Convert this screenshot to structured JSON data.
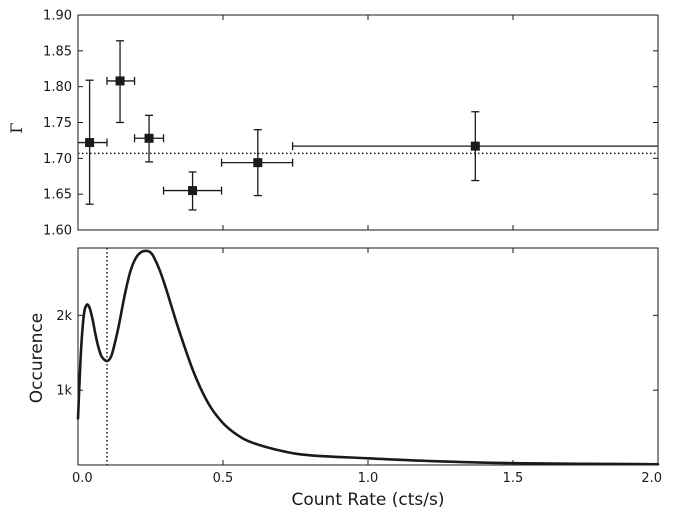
{
  "chart_data": [
    {
      "type": "scatter",
      "title": "",
      "xlabel": "",
      "ylabel": "Γ",
      "xlim": [
        0.0,
        2.0
      ],
      "ylim": [
        1.6,
        1.9
      ],
      "y_ticks": [
        "1.60",
        "1.65",
        "1.70",
        "1.75",
        "1.80",
        "1.85",
        "1.90"
      ],
      "reference_line": {
        "y": 1.707,
        "style": "dotted"
      },
      "points": [
        {
          "x": 0.04,
          "y": 1.722,
          "xerr": [
            0.0,
            0.1
          ],
          "yerr": [
            1.636,
            1.809
          ]
        },
        {
          "x": 0.145,
          "y": 1.808,
          "xerr": [
            0.1,
            0.195
          ],
          "yerr": [
            1.75,
            1.864
          ]
        },
        {
          "x": 0.245,
          "y": 1.728,
          "xerr": [
            0.195,
            0.295
          ],
          "yerr": [
            1.695,
            1.76
          ]
        },
        {
          "x": 0.395,
          "y": 1.655,
          "xerr": [
            0.295,
            0.495
          ],
          "yerr": [
            1.628,
            1.681
          ]
        },
        {
          "x": 0.62,
          "y": 1.694,
          "xerr": [
            0.495,
            0.74
          ],
          "yerr": [
            1.648,
            1.74
          ]
        },
        {
          "x": 1.37,
          "y": 1.717,
          "xerr": [
            0.74,
            2.0
          ],
          "yerr": [
            1.669,
            1.765
          ]
        }
      ]
    },
    {
      "type": "line",
      "title": "",
      "xlabel": "Count Rate (cts/s)",
      "ylabel": "Occurence",
      "xlim": [
        0.0,
        2.0
      ],
      "ylim": [
        0,
        2900
      ],
      "x_ticks": [
        "0.0",
        "0.5",
        "1.0",
        "1.5",
        "2.0"
      ],
      "y_ticks": [
        {
          "value": 1000,
          "label": "1k"
        },
        {
          "value": 2000,
          "label": "2k"
        }
      ],
      "reference_line": {
        "x": 0.1,
        "style": "dotted"
      },
      "series": [
        {
          "x": [
            0.0,
            0.01,
            0.02,
            0.03,
            0.04,
            0.05,
            0.06,
            0.07,
            0.08,
            0.09,
            0.1,
            0.11,
            0.12,
            0.14,
            0.16,
            0.18,
            0.2,
            0.22,
            0.24,
            0.25,
            0.26,
            0.28,
            0.3,
            0.32,
            0.35,
            0.4,
            0.45,
            0.5,
            0.55,
            0.6,
            0.7,
            0.8,
            1.0,
            1.2,
            1.5,
            2.0
          ],
          "y": [
            620,
            1500,
            2000,
            2140,
            2100,
            1950,
            1750,
            1580,
            1460,
            1410,
            1390,
            1420,
            1520,
            1850,
            2250,
            2580,
            2770,
            2850,
            2860,
            2840,
            2790,
            2620,
            2400,
            2150,
            1780,
            1230,
            820,
            560,
            400,
            300,
            190,
            130,
            90,
            55,
            25,
            10
          ]
        }
      ]
    }
  ]
}
